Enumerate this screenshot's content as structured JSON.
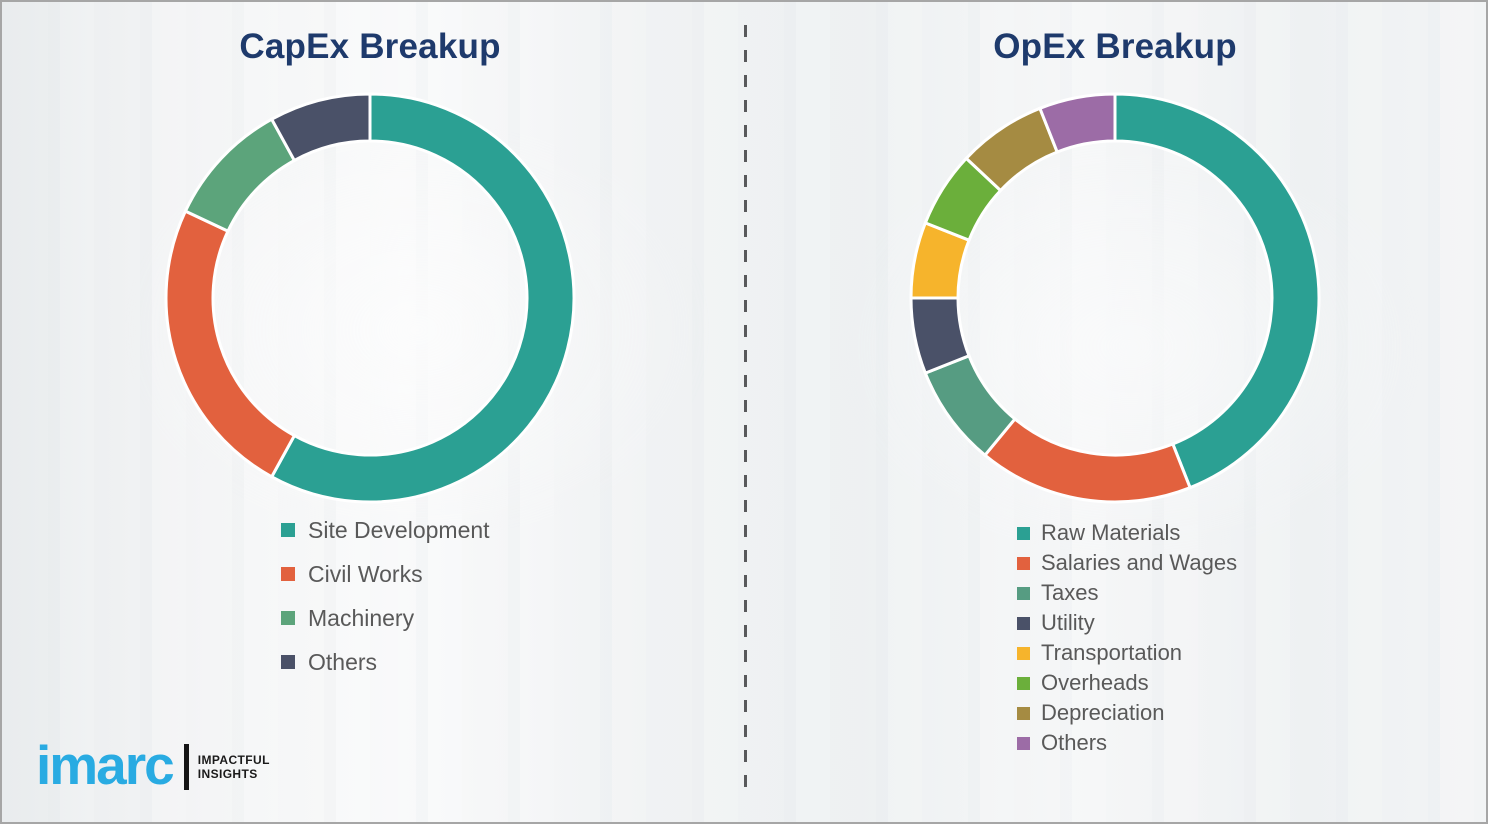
{
  "page": {
    "background_color": "#f2f3f4",
    "border_color": "#a6a6a6",
    "title_color": "#1e3a6c",
    "legend_text_color": "#595959"
  },
  "chart_data": [
    {
      "id": "capex",
      "type": "pie",
      "subtype": "donut",
      "title": "CapEx Breakup",
      "labels": [
        "Site Development",
        "Civil Works",
        "Machinery",
        "Others"
      ],
      "values": [
        58,
        24,
        10,
        8
      ],
      "values_note": "percent, estimated from arc angles (no numeric labels shown)",
      "colors": [
        "#2BA093",
        "#E2613E",
        "#5CA47B",
        "#4A5168"
      ],
      "hole_ratio": 0.77,
      "start_angle_deg": 0,
      "direction": "clockwise",
      "legend_position": "below-left",
      "data_labels": false
    },
    {
      "id": "opex",
      "type": "pie",
      "subtype": "donut",
      "title": "OpEx Breakup",
      "labels": [
        "Raw Materials",
        "Salaries and Wages",
        "Taxes",
        "Utility",
        "Transportation",
        "Overheads",
        "Depreciation",
        "Others"
      ],
      "values": [
        44,
        17,
        8,
        6,
        6,
        6,
        7,
        6
      ],
      "values_note": "percent, estimated from arc angles (no numeric labels shown)",
      "colors": [
        "#2BA093",
        "#E2613E",
        "#569C82",
        "#4A5168",
        "#F6B42C",
        "#6BAF3B",
        "#A58B42",
        "#9C6CA6"
      ],
      "hole_ratio": 0.77,
      "start_angle_deg": 0,
      "direction": "clockwise",
      "legend_position": "below-left",
      "data_labels": false
    }
  ],
  "logo": {
    "brand": "imarc",
    "brand_color": "#29ABE2",
    "tagline_line1": "IMPACTFUL",
    "tagline_line2": "INSIGHTS"
  }
}
